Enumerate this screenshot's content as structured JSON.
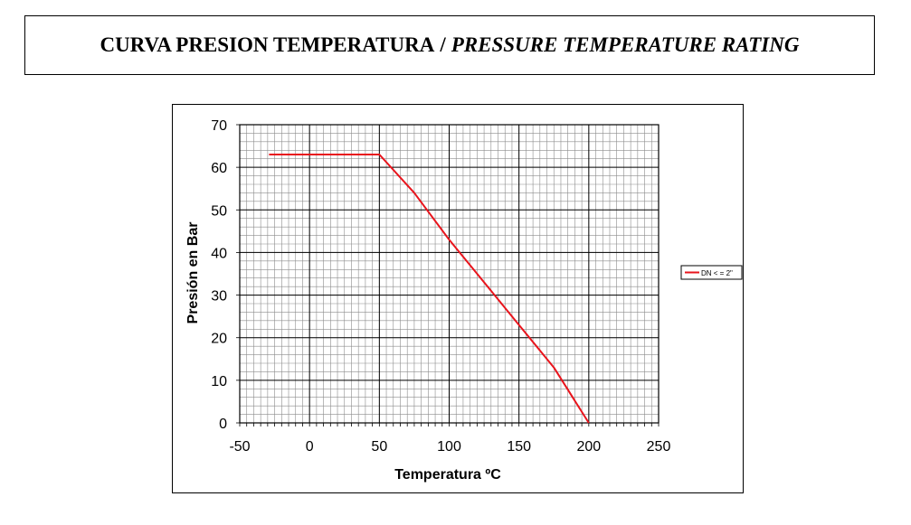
{
  "header": {
    "title_es": "CURVA PRESION TEMPERATURA",
    "separator": "/",
    "title_en": "PRESSURE TEMPERATURE RATING"
  },
  "colors": {
    "series": "#e8141c",
    "major_grid": "#000000",
    "minor_grid": "#8c8c8c"
  },
  "chart_data": {
    "type": "line",
    "xlabel": "Temperatura ºC",
    "ylabel": "Presión en Bar",
    "xlim": [
      -50,
      250
    ],
    "ylim": [
      0,
      70
    ],
    "x_ticks": [
      -50,
      0,
      50,
      100,
      150,
      200,
      250
    ],
    "y_ticks": [
      0,
      10,
      20,
      30,
      40,
      50,
      60,
      70
    ],
    "grid": true,
    "legend_position": "right",
    "series": [
      {
        "name": "DN < = 2\"",
        "x": [
          -29,
          50,
          75,
          100,
          125,
          150,
          175,
          200
        ],
        "y": [
          63,
          63,
          54,
          43,
          33,
          23,
          13,
          0
        ]
      }
    ]
  }
}
